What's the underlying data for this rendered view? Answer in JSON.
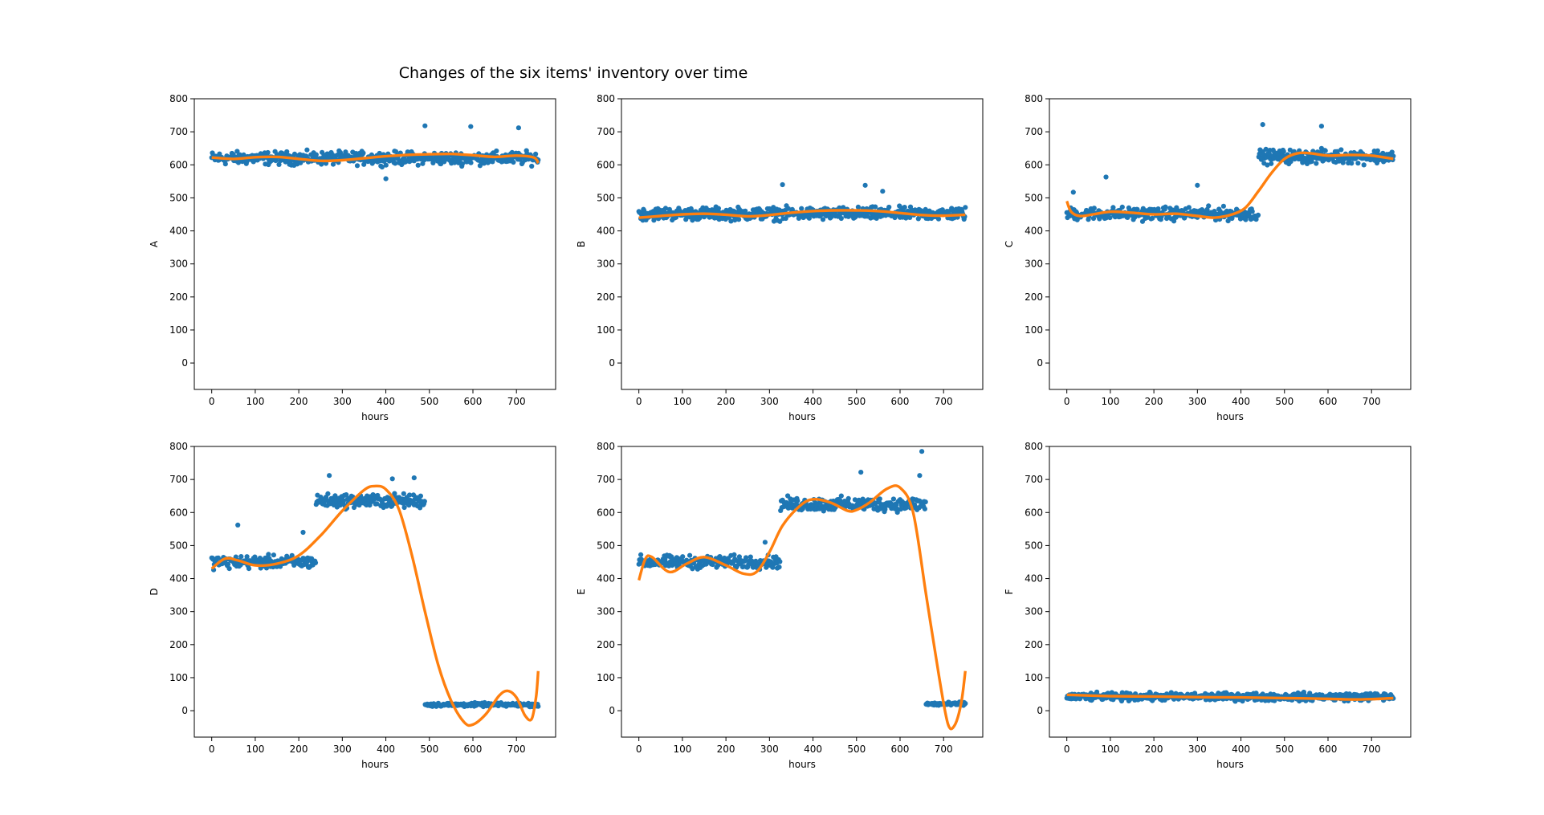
{
  "figure": {
    "suptitle": "Changes of the six items' inventory over time",
    "colors": {
      "scatter": "#1f77b4",
      "fit": "#ff7f0e",
      "axes": "#000000",
      "background": "#ffffff"
    }
  },
  "chart_data": [
    {
      "type": "scatter",
      "id": "A",
      "xlabel": "hours",
      "ylabel": "A",
      "xlim": [
        -40,
        790
      ],
      "ylim": [
        -80,
        800
      ],
      "xticks": [
        0,
        100,
        200,
        300,
        400,
        500,
        600,
        700
      ],
      "yticks": [
        0,
        100,
        200,
        300,
        400,
        500,
        600,
        700,
        800
      ],
      "grid": false,
      "x_range": [
        0,
        750
      ],
      "segments": [
        {
          "from": 0,
          "to": 750,
          "mean": 620,
          "spread": 28
        }
      ],
      "outliers": [
        {
          "x": 490,
          "y": 718
        },
        {
          "x": 595,
          "y": 716
        },
        {
          "x": 705,
          "y": 712
        },
        {
          "x": 400,
          "y": 558
        }
      ],
      "fit": [
        [
          0,
          622
        ],
        [
          50,
          618
        ],
        [
          100,
          623
        ],
        [
          150,
          624
        ],
        [
          200,
          618
        ],
        [
          250,
          612
        ],
        [
          300,
          614
        ],
        [
          350,
          620
        ],
        [
          400,
          626
        ],
        [
          450,
          630
        ],
        [
          500,
          632
        ],
        [
          550,
          633
        ],
        [
          600,
          629
        ],
        [
          650,
          624
        ],
        [
          700,
          628
        ],
        [
          740,
          622
        ],
        [
          750,
          605
        ]
      ]
    },
    {
      "type": "scatter",
      "id": "B",
      "xlabel": "hours",
      "ylabel": "B",
      "xlim": [
        -40,
        790
      ],
      "ylim": [
        -80,
        800
      ],
      "xticks": [
        0,
        100,
        200,
        300,
        400,
        500,
        600,
        700
      ],
      "yticks": [
        0,
        100,
        200,
        300,
        400,
        500,
        600,
        700,
        800
      ],
      "grid": false,
      "x_range": [
        0,
        750
      ],
      "segments": [
        {
          "from": 0,
          "to": 750,
          "mean": 452,
          "spread": 28
        }
      ],
      "outliers": [
        {
          "x": 330,
          "y": 540
        },
        {
          "x": 520,
          "y": 538
        },
        {
          "x": 560,
          "y": 520
        }
      ],
      "fit": [
        [
          0,
          440
        ],
        [
          50,
          445
        ],
        [
          100,
          450
        ],
        [
          150,
          452
        ],
        [
          200,
          449
        ],
        [
          250,
          444
        ],
        [
          300,
          448
        ],
        [
          350,
          455
        ],
        [
          400,
          460
        ],
        [
          450,
          462
        ],
        [
          500,
          462
        ],
        [
          550,
          460
        ],
        [
          600,
          454
        ],
        [
          650,
          448
        ],
        [
          700,
          446
        ],
        [
          750,
          449
        ]
      ]
    },
    {
      "type": "scatter",
      "id": "C",
      "xlabel": "hours",
      "ylabel": "C",
      "xlim": [
        -40,
        790
      ],
      "ylim": [
        -80,
        800
      ],
      "xticks": [
        0,
        100,
        200,
        300,
        400,
        500,
        600,
        700
      ],
      "yticks": [
        0,
        100,
        200,
        300,
        400,
        500,
        600,
        700,
        800
      ],
      "grid": false,
      "x_range": [
        0,
        750
      ],
      "segments": [
        {
          "from": 0,
          "to": 440,
          "mean": 452,
          "spread": 28
        },
        {
          "from": 440,
          "to": 750,
          "mean": 625,
          "spread": 30
        }
      ],
      "outliers": [
        {
          "x": 90,
          "y": 563
        },
        {
          "x": 300,
          "y": 538
        },
        {
          "x": 450,
          "y": 722
        },
        {
          "x": 585,
          "y": 717
        },
        {
          "x": 15,
          "y": 517
        }
      ],
      "fit": [
        [
          0,
          490
        ],
        [
          10,
          458
        ],
        [
          30,
          445
        ],
        [
          60,
          450
        ],
        [
          100,
          458
        ],
        [
          150,
          455
        ],
        [
          200,
          450
        ],
        [
          250,
          452
        ],
        [
          300,
          445
        ],
        [
          340,
          440
        ],
        [
          380,
          450
        ],
        [
          410,
          470
        ],
        [
          440,
          520
        ],
        [
          470,
          575
        ],
        [
          500,
          618
        ],
        [
          530,
          635
        ],
        [
          560,
          635
        ],
        [
          600,
          628
        ],
        [
          650,
          630
        ],
        [
          700,
          628
        ],
        [
          750,
          618
        ]
      ]
    },
    {
      "type": "scatter",
      "id": "D",
      "xlabel": "hours",
      "ylabel": "D",
      "xlim": [
        -40,
        790
      ],
      "ylim": [
        -80,
        800
      ],
      "xticks": [
        0,
        100,
        200,
        300,
        400,
        500,
        600,
        700
      ],
      "yticks": [
        0,
        100,
        200,
        300,
        400,
        500,
        600,
        700,
        800
      ],
      "grid": false,
      "x_range": [
        0,
        750
      ],
      "segments": [
        {
          "from": 0,
          "to": 240,
          "mean": 450,
          "spread": 28
        },
        {
          "from": 240,
          "to": 490,
          "mean": 635,
          "spread": 30
        },
        {
          "from": 490,
          "to": 750,
          "mean": 18,
          "spread": 8
        }
      ],
      "outliers": [
        {
          "x": 60,
          "y": 562
        },
        {
          "x": 270,
          "y": 712
        },
        {
          "x": 415,
          "y": 702
        },
        {
          "x": 465,
          "y": 705
        },
        {
          "x": 210,
          "y": 540
        }
      ],
      "fit": [
        [
          0,
          430
        ],
        [
          30,
          460
        ],
        [
          60,
          455
        ],
        [
          100,
          440
        ],
        [
          150,
          445
        ],
        [
          200,
          470
        ],
        [
          250,
          530
        ],
        [
          300,
          605
        ],
        [
          350,
          668
        ],
        [
          375,
          680
        ],
        [
          400,
          670
        ],
        [
          430,
          610
        ],
        [
          460,
          470
        ],
        [
          490,
          300
        ],
        [
          520,
          140
        ],
        [
          550,
          30
        ],
        [
          580,
          -35
        ],
        [
          600,
          -42
        ],
        [
          630,
          -10
        ],
        [
          660,
          45
        ],
        [
          680,
          60
        ],
        [
          700,
          40
        ],
        [
          720,
          -15
        ],
        [
          735,
          -25
        ],
        [
          745,
          40
        ],
        [
          750,
          120
        ]
      ]
    },
    {
      "type": "scatter",
      "id": "E",
      "xlabel": "hours",
      "ylabel": "E",
      "xlim": [
        -40,
        790
      ],
      "ylim": [
        -80,
        800
      ],
      "xticks": [
        0,
        100,
        200,
        300,
        400,
        500,
        600,
        700
      ],
      "yticks": [
        0,
        100,
        200,
        300,
        400,
        500,
        600,
        700,
        800
      ],
      "grid": false,
      "x_range": [
        0,
        750
      ],
      "segments": [
        {
          "from": 0,
          "to": 325,
          "mean": 450,
          "spread": 28
        },
        {
          "from": 325,
          "to": 660,
          "mean": 625,
          "spread": 30
        },
        {
          "from": 660,
          "to": 750,
          "mean": 20,
          "spread": 8
        }
      ],
      "outliers": [
        {
          "x": 510,
          "y": 722
        },
        {
          "x": 650,
          "y": 785
        },
        {
          "x": 645,
          "y": 712
        },
        {
          "x": 290,
          "y": 510
        }
      ],
      "fit": [
        [
          0,
          395
        ],
        [
          15,
          460
        ],
        [
          30,
          465
        ],
        [
          70,
          420
        ],
        [
          110,
          445
        ],
        [
          150,
          465
        ],
        [
          200,
          440
        ],
        [
          240,
          415
        ],
        [
          270,
          420
        ],
        [
          300,
          480
        ],
        [
          330,
          560
        ],
        [
          370,
          620
        ],
        [
          400,
          640
        ],
        [
          440,
          630
        ],
        [
          480,
          605
        ],
        [
          500,
          608
        ],
        [
          530,
          630
        ],
        [
          570,
          672
        ],
        [
          600,
          675
        ],
        [
          630,
          600
        ],
        [
          660,
          350
        ],
        [
          690,
          100
        ],
        [
          710,
          -40
        ],
        [
          725,
          -45
        ],
        [
          740,
          20
        ],
        [
          750,
          120
        ]
      ]
    },
    {
      "type": "scatter",
      "id": "F",
      "xlabel": "hours",
      "ylabel": "F",
      "xlim": [
        -40,
        790
      ],
      "ylim": [
        -80,
        800
      ],
      "xticks": [
        0,
        100,
        200,
        300,
        400,
        500,
        600,
        700
      ],
      "yticks": [
        0,
        100,
        200,
        300,
        400,
        500,
        600,
        700,
        800
      ],
      "grid": false,
      "x_range": [
        0,
        750
      ],
      "segments": [
        {
          "from": 0,
          "to": 750,
          "mean": 42,
          "spread": 17
        }
      ],
      "outliers": [],
      "fit": [
        [
          0,
          48
        ],
        [
          100,
          44
        ],
        [
          200,
          43
        ],
        [
          300,
          41
        ],
        [
          400,
          40
        ],
        [
          500,
          38
        ],
        [
          600,
          36
        ],
        [
          650,
          34
        ],
        [
          700,
          35
        ],
        [
          750,
          38
        ]
      ]
    }
  ]
}
